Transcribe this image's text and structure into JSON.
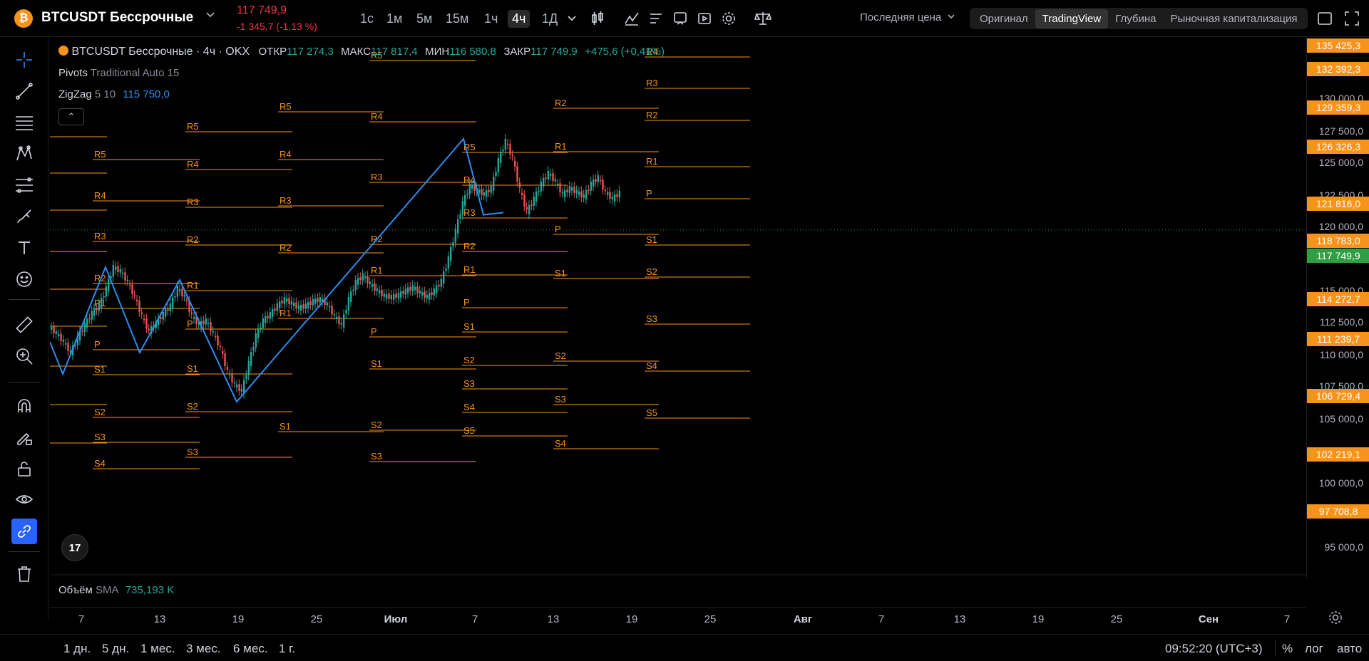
{
  "header": {
    "coin_symbol": "₿",
    "pair_title": "BTCUSDT Бессрочные",
    "price": "117 749,9",
    "change": "-1 345,7 (-1,13 %)",
    "timeframes": [
      "1с",
      "1м",
      "5м",
      "15м",
      "1ч",
      "4ч",
      "1Д"
    ],
    "active_timeframe": "4ч",
    "price_type": "Последняя цена",
    "views": [
      "Оригинал",
      "TradingView",
      "Глубина",
      "Рыночная капитализация"
    ],
    "active_view": "TradingView"
  },
  "legend": {
    "symbol": "BTCUSDT Бессрочные · 4ч · OKX",
    "open_label": "ОТКР",
    "open": "117 274,3",
    "high_label": "МАКС",
    "high": "117 817,4",
    "low_label": "МИН",
    "low": "116 580,8",
    "close_label": "ЗАКР",
    "close": "117 749,9",
    "change": "+475,6 (+0,41%)",
    "pivots_name": "Pivots",
    "pivots_params": "Traditional Auto 15",
    "zigzag_name": "ZigZag",
    "zigzag_params": "5 10",
    "zigzag_value": "115 750,0",
    "collapse": "⌃",
    "volume_name": "Объём",
    "volume_params": "SMA",
    "volume_value": "735,193 K",
    "tv_logo": "17"
  },
  "price_scale": {
    "ticks": [
      "130 000,0",
      "127 500,0",
      "125 000,0",
      "122 500,0",
      "120 000,0",
      "115 000,0",
      "112 500,0",
      "110 000,0",
      "107 500,0",
      "105 000,0",
      "100 000,0",
      "95 000,0"
    ],
    "tags": [
      "135 425,3",
      "132 392,3",
      "129 359,3",
      "126 326,3",
      "121 816,0",
      "118 783,0",
      "114 272,7",
      "111 239,7",
      "106 729,4",
      "102 219,1",
      "97 708,8"
    ],
    "current": "117 749,9"
  },
  "time_axis": {
    "labels": [
      "7",
      "13",
      "19",
      "25",
      "Июл",
      "7",
      "13",
      "19",
      "25",
      "Авг",
      "7",
      "13",
      "19",
      "25",
      "Сен",
      "7"
    ]
  },
  "bottom": {
    "ranges": [
      "1 дн.",
      "5 дн.",
      "1 мес.",
      "3 мес.",
      "6 мес.",
      "1 г."
    ],
    "clock": "09:52:20 (UTC+3)",
    "percent": "%",
    "log": "лог",
    "auto": "авто"
  },
  "pivot_labels": {
    "r5": "R5",
    "r4": "R4",
    "r3": "R3",
    "r2": "R2",
    "r1": "R1",
    "p": "P",
    "s1": "S1",
    "s2": "S2",
    "s3": "S3",
    "s4": "S4",
    "s5": "S5"
  },
  "colors": {
    "pivot": "#f7931a",
    "zigzag": "#2f8cf0",
    "up": "#26a69a",
    "down": "#ef5350",
    "current": "#2ea043"
  }
}
